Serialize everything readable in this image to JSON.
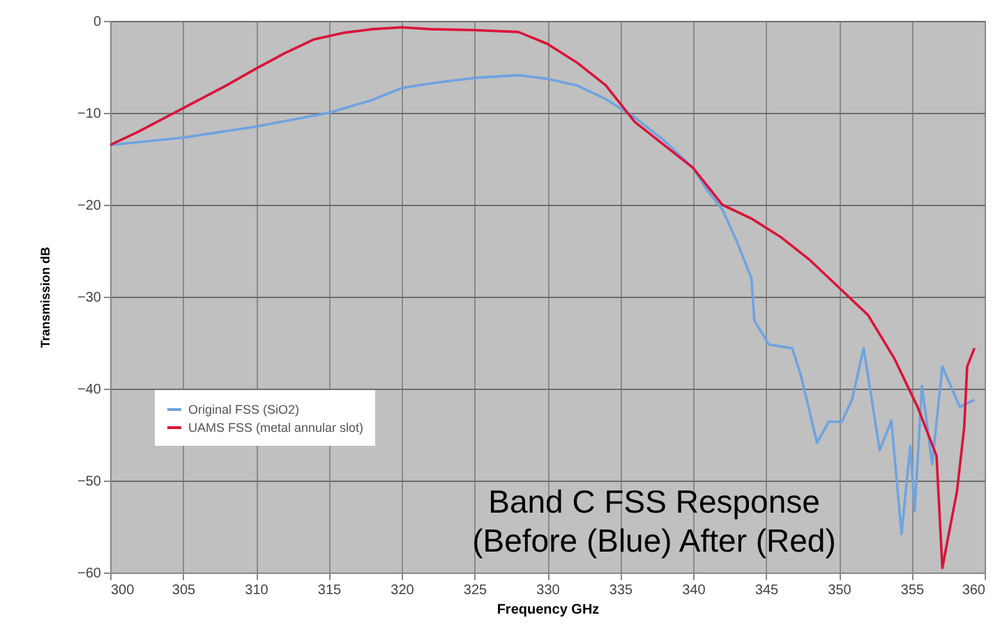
{
  "chart_data": {
    "type": "line",
    "title": "Band C FSS Response\n(Before (Blue) After (Red)",
    "xlabel": "Frequency GHz",
    "ylabel": "Transmission dB",
    "xlim": [
      300,
      360
    ],
    "xticks": [
      300,
      305,
      310,
      315,
      320,
      325,
      330,
      335,
      340,
      345,
      350,
      355,
      360
    ],
    "ylim": [
      -60,
      0
    ],
    "yticks": [
      -60,
      -50,
      -40,
      -30,
      -20,
      -10,
      0
    ],
    "grid": true,
    "legend": "bottom left",
    "marker": "none",
    "line_style": "solid",
    "series": [
      {
        "name": "Original FSS (SiO2)",
        "color": "#6fa3e0",
        "x": [
          300,
          305,
          310,
          315,
          318,
          320,
          322,
          325,
          328,
          330,
          332,
          334,
          336,
          338,
          340,
          341,
          342,
          343,
          344,
          344.2,
          345.2,
          346.8,
          347.4,
          348.5,
          349.3,
          350.2,
          350.9,
          351.7,
          352.8,
          353.6,
          354.3,
          354.9,
          355.2,
          355.7,
          356.4,
          357.1,
          358.3,
          359.3
        ],
        "values": [
          -13.5,
          -12.7,
          -11.5,
          -10,
          -8.6,
          -7.3,
          -6.8,
          -6.2,
          -5.9,
          -6.3,
          -7,
          -8.5,
          -10.5,
          -13,
          -16,
          -18.5,
          -20.5,
          -24,
          -28,
          -32.6,
          -35.2,
          -35.6,
          -38.6,
          -45.9,
          -43.6,
          -43.6,
          -41.2,
          -35.6,
          -46.7,
          -43.5,
          -55.8,
          -46.2,
          -53.3,
          -39.7,
          -48.2,
          -37.6,
          -42,
          -41.2
        ]
      },
      {
        "name": "UAMS FSS (metal annular slot)",
        "color": "#d9143a",
        "x": [
          300,
          302,
          305,
          308,
          310,
          312,
          314,
          316,
          318,
          320,
          322,
          325,
          328,
          330,
          332,
          334,
          336,
          338,
          340,
          342,
          344,
          346,
          348,
          350,
          352,
          353.8,
          355.4,
          356.7,
          357.1,
          357.6,
          358.1,
          358.6,
          358.8,
          359.3
        ],
        "values": [
          -13.5,
          -12,
          -9.5,
          -7,
          -5.2,
          -3.5,
          -2,
          -1.3,
          -0.9,
          -0.7,
          -0.9,
          -1,
          -1.2,
          -2.5,
          -4.5,
          -7,
          -11,
          -13.5,
          -16,
          -20,
          -21.5,
          -23.5,
          -26,
          -29,
          -32,
          -36.7,
          -42,
          -47.3,
          -59.5,
          -55.3,
          -51.2,
          -44.2,
          -37.6,
          -35.6
        ]
      }
    ]
  }
}
